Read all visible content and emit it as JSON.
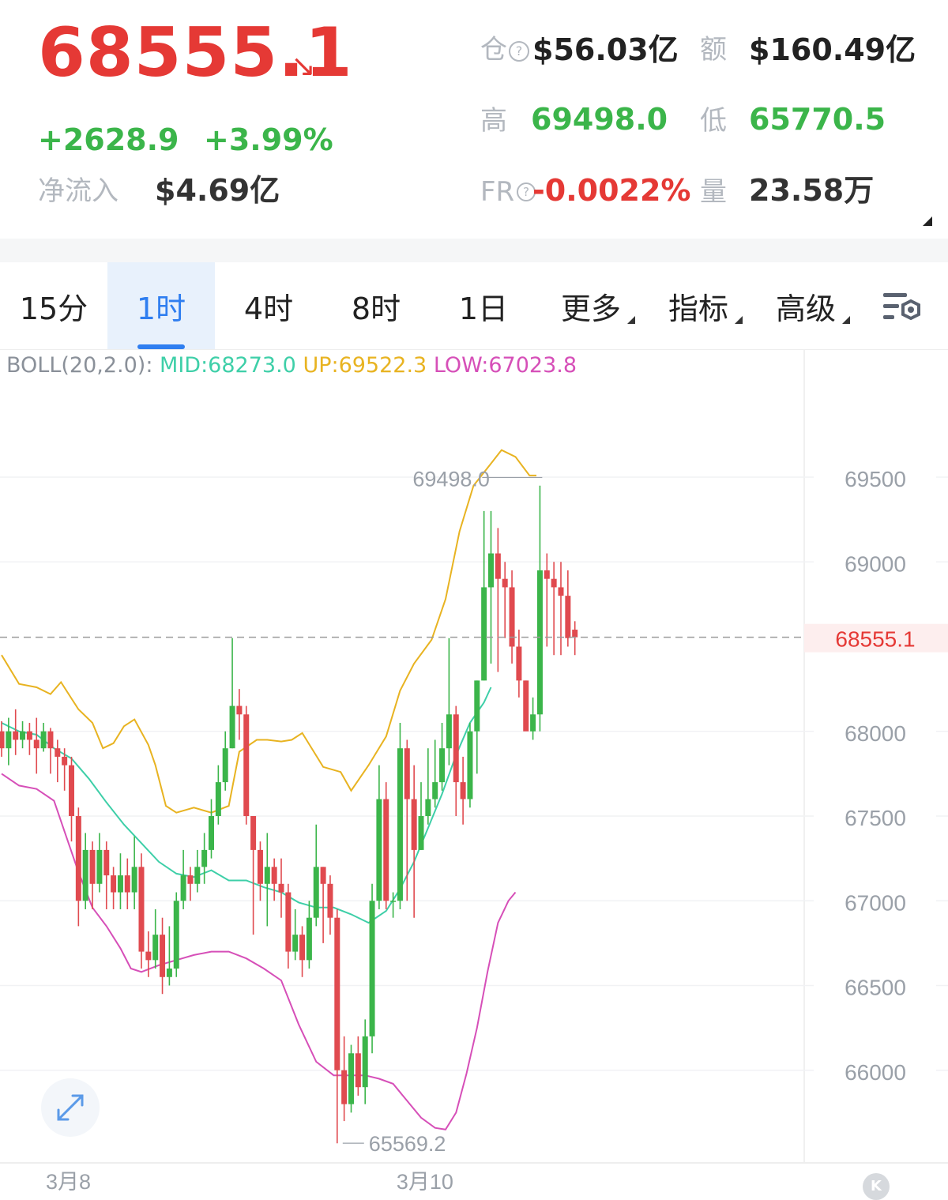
{
  "header": {
    "price": "68555.1",
    "price_color": "#e53935",
    "trend_arrow": "↘",
    "change": "+2628.9",
    "change_pct": "+3.99%",
    "net_inflow_label": "净流入",
    "net_inflow_value": "$4.69亿",
    "open_interest_label": "仓",
    "open_interest_value": "$56.03亿",
    "amount_label": "额",
    "amount_value": "$160.49亿",
    "high_label": "高",
    "high_value": "69498.0",
    "low_label": "低",
    "low_value": "65770.5",
    "fr_label": "FR",
    "fr_value": "-0.0022%",
    "volume_label": "量",
    "volume_value": "23.58万",
    "help_icon": "question-circle-icon"
  },
  "tabs": [
    {
      "label": "15分",
      "active": false
    },
    {
      "label": "1时",
      "active": true
    },
    {
      "label": "4时",
      "active": false
    },
    {
      "label": "8时",
      "active": false
    },
    {
      "label": "1日",
      "active": false
    },
    {
      "label": "更多",
      "active": false
    },
    {
      "label": "指标",
      "active": false
    },
    {
      "label": "高级",
      "active": false
    }
  ],
  "toolbar": {
    "settings_icon": "chart-settings-icon",
    "expand_icon": "expand-arrows-icon",
    "badge": "K"
  },
  "legend": {
    "name": "BOLL(20,2.0):",
    "mid": "MID:68273.0",
    "up": "UP:69522.3",
    "low": "LOW:67023.8"
  },
  "colors": {
    "up": "#3bb54a",
    "down": "#e04a4f",
    "mid": "#3ecfa8",
    "upper": "#e8b321",
    "lower": "#d64fb8",
    "accent": "#2f7ef0"
  },
  "chart_data": {
    "type": "candlestick",
    "interval": "1h",
    "y_ticks": [
      69500,
      69000,
      68000,
      67500,
      67000,
      66500,
      66000
    ],
    "ylim": [
      65550,
      69900
    ],
    "current_price": "68555.1",
    "high_marker": "69498.0",
    "low_marker": "65569.2",
    "x_labels": [
      {
        "label": "3月8",
        "index": 3
      },
      {
        "label": "3月10",
        "index": 54
      }
    ],
    "candles": [
      [
        68000,
        67900,
        68060,
        67850
      ],
      [
        67900,
        68000,
        68080,
        67800
      ],
      [
        68000,
        67950,
        68130,
        67860
      ],
      [
        67950,
        68000,
        68060,
        67900
      ],
      [
        68000,
        67950,
        68050,
        67860
      ],
      [
        67950,
        67900,
        68080,
        67750
      ],
      [
        67900,
        68000,
        68050,
        67880
      ],
      [
        68000,
        67900,
        68020,
        67750
      ],
      [
        67900,
        67850,
        67950,
        67700
      ],
      [
        67850,
        67800,
        67900,
        67650
      ],
      [
        67800,
        67500,
        67850,
        67350
      ],
      [
        67500,
        67000,
        67550,
        66850
      ],
      [
        67000,
        67300,
        67400,
        66950
      ],
      [
        67300,
        67100,
        67350,
        66950
      ],
      [
        67100,
        67300,
        67400,
        67050
      ],
      [
        67300,
        67150,
        67350,
        66950
      ],
      [
        67150,
        67050,
        67200,
        66950
      ],
      [
        67050,
        67150,
        67280,
        66950
      ],
      [
        67150,
        67050,
        67250,
        66950
      ],
      [
        67050,
        67200,
        67380,
        66950
      ],
      [
        67200,
        66700,
        67280,
        66600
      ],
      [
        66700,
        66650,
        66820,
        66550
      ],
      [
        66650,
        66800,
        66950,
        66600
      ],
      [
        66800,
        66550,
        66900,
        66450
      ],
      [
        66550,
        66600,
        66850,
        66500
      ],
      [
        66600,
        67000,
        67050,
        66550
      ],
      [
        67000,
        67150,
        67300,
        66950
      ],
      [
        67150,
        67100,
        67200,
        67000
      ],
      [
        67100,
        67200,
        67300,
        67050
      ],
      [
        67200,
        67300,
        67400,
        67100
      ],
      [
        67300,
        67500,
        67600,
        67250
      ],
      [
        67500,
        67700,
        67800,
        67450
      ],
      [
        67700,
        67900,
        68000,
        67650
      ],
      [
        67900,
        68150,
        68550,
        67900
      ],
      [
        68150,
        68100,
        68250,
        67950
      ],
      [
        68100,
        67500,
        68150,
        67450
      ],
      [
        67500,
        67300,
        67500,
        66800
      ],
      [
        67300,
        67100,
        67350,
        67000
      ],
      [
        67100,
        67200,
        67400,
        66850
      ],
      [
        67200,
        67100,
        67250,
        67000
      ],
      [
        67100,
        67050,
        67250,
        66900
      ],
      [
        67050,
        66700,
        67100,
        66600
      ],
      [
        66700,
        66800,
        66950,
        66650
      ],
      [
        66800,
        66650,
        66850,
        66550
      ],
      [
        66650,
        66900,
        67000,
        66600
      ],
      [
        66900,
        67200,
        67450,
        66850
      ],
      [
        67200,
        67100,
        67200,
        66750
      ],
      [
        67100,
        66900,
        67150,
        66800
      ],
      [
        66900,
        66000,
        66950,
        65569
      ],
      [
        66000,
        65800,
        66200,
        65700
      ],
      [
        65800,
        66100,
        66150,
        65750
      ],
      [
        66100,
        65900,
        66200,
        65850
      ],
      [
        65900,
        66200,
        66300,
        65800
      ],
      [
        66200,
        67000,
        67100,
        66100
      ],
      [
        67000,
        67600,
        67800,
        66950
      ],
      [
        67600,
        67000,
        67700,
        66950
      ],
      [
        67000,
        67000,
        67050,
        66900
      ],
      [
        67000,
        67900,
        68050,
        66950
      ],
      [
        67900,
        67600,
        67950,
        67000
      ],
      [
        67600,
        67300,
        67800,
        66900
      ],
      [
        67300,
        67500,
        67700,
        67300
      ],
      [
        67500,
        67600,
        67900,
        67450
      ],
      [
        67600,
        67700,
        67950,
        67550
      ],
      [
        67700,
        67900,
        68050,
        67650
      ],
      [
        67900,
        68100,
        68550,
        67800
      ],
      [
        68100,
        67700,
        68150,
        67500
      ],
      [
        67700,
        67600,
        67850,
        67450
      ],
      [
        67600,
        68000,
        68050,
        67550
      ],
      [
        68000,
        68300,
        68300,
        67750
      ],
      [
        68300,
        68850,
        69300,
        68300
      ],
      [
        68850,
        69050,
        69300,
        68400
      ],
      [
        69050,
        68900,
        69200,
        68350
      ],
      [
        68900,
        68850,
        69000,
        68550
      ],
      [
        68850,
        68500,
        68950,
        68400
      ],
      [
        68500,
        68300,
        68600,
        68200
      ],
      [
        68300,
        68000,
        68300,
        68200
      ],
      [
        68000,
        68100,
        68200,
        67950
      ],
      [
        68100,
        68950,
        69450,
        68000
      ],
      [
        68950,
        68900,
        69050,
        68500
      ],
      [
        68900,
        68850,
        69000,
        68450
      ],
      [
        68850,
        68800,
        69000,
        68450
      ],
      [
        68800,
        68550,
        68950,
        68500
      ],
      [
        68600,
        68555,
        68650,
        68450
      ]
    ],
    "upper": [
      [
        0,
        68450
      ],
      [
        5,
        68280
      ],
      [
        10,
        68260
      ],
      [
        14,
        68220
      ],
      [
        17,
        68290
      ],
      [
        22,
        68130
      ],
      [
        26,
        68050
      ],
      [
        29,
        67900
      ],
      [
        32,
        67930
      ],
      [
        35,
        68030
      ],
      [
        38,
        68070
      ],
      [
        42,
        67920
      ],
      [
        44,
        67800
      ],
      [
        47,
        67560
      ],
      [
        50,
        67520
      ],
      [
        55,
        67550
      ],
      [
        60,
        67520
      ],
      [
        65,
        67560
      ],
      [
        68,
        67880
      ],
      [
        73,
        67950
      ],
      [
        76,
        67950
      ],
      [
        80,
        67940
      ],
      [
        83,
        67950
      ],
      [
        86,
        67990
      ],
      [
        92,
        67790
      ],
      [
        97,
        67760
      ],
      [
        100,
        67650
      ],
      [
        105,
        67800
      ],
      [
        110,
        67970
      ],
      [
        114,
        68240
      ],
      [
        118,
        68400
      ],
      [
        123,
        68540
      ],
      [
        127,
        68780
      ],
      [
        131,
        69180
      ],
      [
        135,
        69450
      ],
      [
        140,
        69580
      ],
      [
        143,
        69660
      ],
      [
        147,
        69620
      ],
      [
        151,
        69510
      ],
      [
        153,
        69510
      ]
    ],
    "mid": [
      [
        0,
        68050
      ],
      [
        5,
        68000
      ],
      [
        10,
        67980
      ],
      [
        15,
        67900
      ],
      [
        20,
        67840
      ],
      [
        25,
        67720
      ],
      [
        30,
        67580
      ],
      [
        35,
        67450
      ],
      [
        40,
        67340
      ],
      [
        45,
        67230
      ],
      [
        50,
        67160
      ],
      [
        55,
        67140
      ],
      [
        60,
        67180
      ],
      [
        65,
        67120
      ],
      [
        70,
        67120
      ],
      [
        75,
        67080
      ],
      [
        80,
        67050
      ],
      [
        85,
        66990
      ],
      [
        90,
        66960
      ],
      [
        95,
        66960
      ],
      [
        100,
        66920
      ],
      [
        105,
        66870
      ],
      [
        110,
        66940
      ],
      [
        114,
        67070
      ],
      [
        118,
        67230
      ],
      [
        122,
        67430
      ],
      [
        126,
        67630
      ],
      [
        130,
        67860
      ],
      [
        134,
        68050
      ],
      [
        138,
        68170
      ],
      [
        140,
        68260
      ]
    ],
    "lower": [
      [
        0,
        67750
      ],
      [
        5,
        67680
      ],
      [
        10,
        67660
      ],
      [
        15,
        67590
      ],
      [
        18,
        67410
      ],
      [
        22,
        67170
      ],
      [
        26,
        66960
      ],
      [
        30,
        66850
      ],
      [
        34,
        66720
      ],
      [
        37,
        66600
      ],
      [
        40,
        66580
      ],
      [
        45,
        66620
      ],
      [
        50,
        66650
      ],
      [
        55,
        66680
      ],
      [
        60,
        66700
      ],
      [
        65,
        66700
      ],
      [
        70,
        66660
      ],
      [
        75,
        66600
      ],
      [
        80,
        66530
      ],
      [
        85,
        66270
      ],
      [
        90,
        66050
      ],
      [
        95,
        65970
      ],
      [
        100,
        65970
      ],
      [
        104,
        65970
      ],
      [
        108,
        65950
      ],
      [
        112,
        65920
      ],
      [
        116,
        65820
      ],
      [
        120,
        65720
      ],
      [
        124,
        65660
      ],
      [
        127,
        65650
      ],
      [
        130,
        65750
      ],
      [
        133,
        65980
      ],
      [
        136,
        66250
      ],
      [
        139,
        66580
      ],
      [
        142,
        66870
      ],
      [
        145,
        67000
      ],
      [
        147,
        67050
      ]
    ]
  }
}
